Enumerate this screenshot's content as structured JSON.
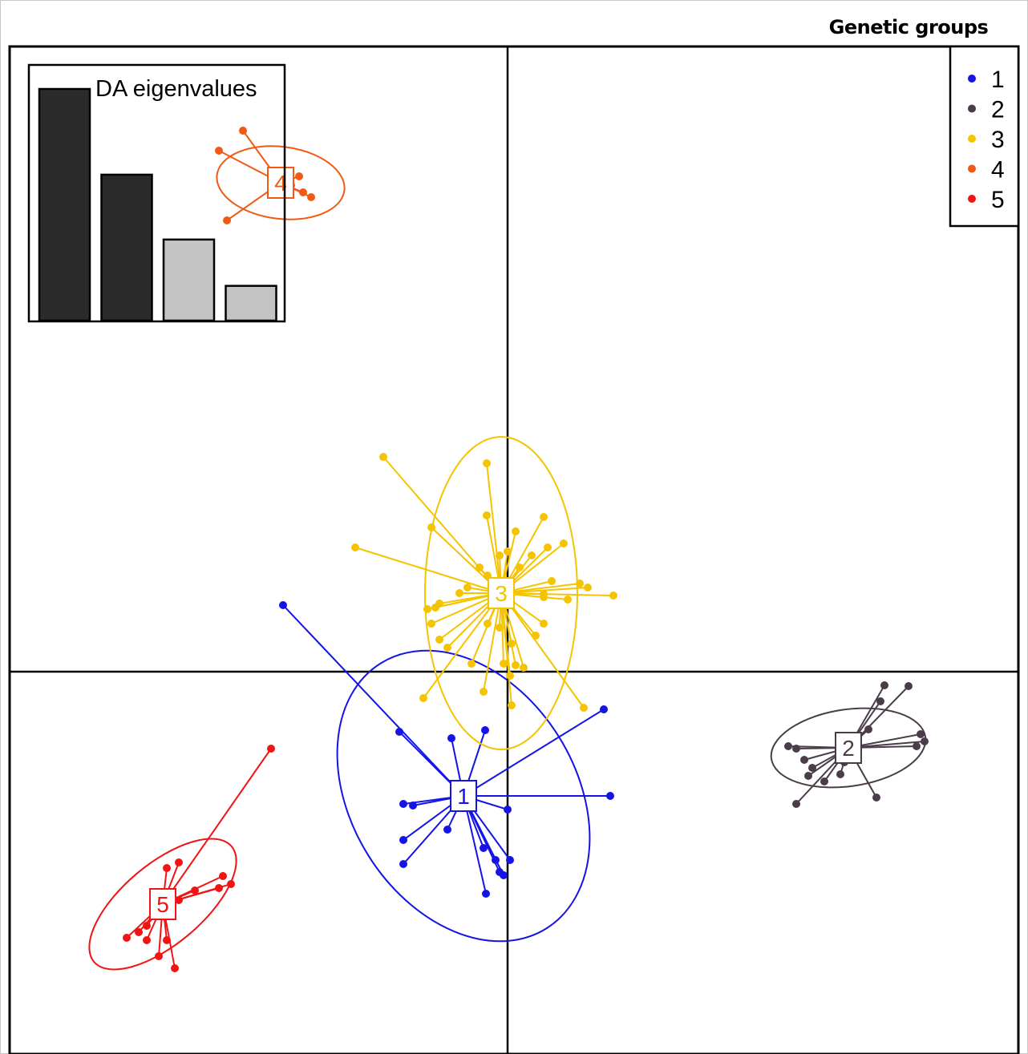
{
  "legend": {
    "title": "Genetic groups",
    "items": [
      {
        "label": "1",
        "color": "#1414e6"
      },
      {
        "label": "2",
        "color": "#4a3c48"
      },
      {
        "label": "3",
        "color": "#f5c400"
      },
      {
        "label": "4",
        "color": "#f05a14"
      },
      {
        "label": "5",
        "color": "#f01414"
      }
    ]
  },
  "inset": {
    "title": "DA eigenvalues",
    "bars": [
      {
        "value": 1.0,
        "retained": true
      },
      {
        "value": 0.63,
        "retained": true
      },
      {
        "value": 0.35,
        "retained": false
      },
      {
        "value": 0.15,
        "retained": false
      }
    ],
    "retained_color": "#2b2b2b",
    "other_color": "#c4c4c4"
  },
  "chart_data": {
    "type": "scatter",
    "xlabel": "",
    "ylabel": "",
    "axis_lines_at": [
      0,
      0
    ],
    "xlim": [
      -6.2,
      6.3
    ],
    "ylim": [
      -4.7,
      7.6
    ],
    "series": [
      {
        "name": "1",
        "centroid": [
          -0.55,
          -1.55
        ],
        "ellipse": {
          "rx": 1.4,
          "ry": 1.95,
          "angle": -32
        },
        "points": [
          [
            -2.8,
            0.83
          ],
          [
            -1.35,
            -0.75
          ],
          [
            -0.7,
            -0.83
          ],
          [
            -0.28,
            -0.73
          ],
          [
            1.2,
            -0.47
          ],
          [
            -1.3,
            -1.65
          ],
          [
            -1.18,
            -1.67
          ],
          [
            0,
            -1.72
          ],
          [
            1.28,
            -1.55
          ],
          [
            -1.3,
            -2.1
          ],
          [
            -0.75,
            -1.97
          ],
          [
            -1.3,
            -2.4
          ],
          [
            -0.3,
            -2.2
          ],
          [
            -0.15,
            -2.35
          ],
          [
            -0.1,
            -2.5
          ],
          [
            -0.05,
            -2.54
          ],
          [
            0.03,
            -2.35
          ],
          [
            -0.27,
            -2.77
          ]
        ]
      },
      {
        "name": "2",
        "centroid": [
          4.25,
          -0.95
        ],
        "ellipse": {
          "rx": 0.97,
          "ry": 0.48,
          "angle": -8
        },
        "points": [
          [
            3.5,
            -0.93
          ],
          [
            3.6,
            -0.96
          ],
          [
            4.7,
            -0.17
          ],
          [
            5,
            -0.18
          ],
          [
            4.65,
            -0.37
          ],
          [
            4.5,
            -0.72
          ],
          [
            5.15,
            -0.78
          ],
          [
            5.2,
            -0.87
          ],
          [
            5.1,
            -0.93
          ],
          [
            4.2,
            -1.13
          ],
          [
            3.7,
            -1.1
          ],
          [
            3.8,
            -1.2
          ],
          [
            3.75,
            -1.3
          ],
          [
            3.95,
            -1.37
          ],
          [
            4.15,
            -1.28
          ],
          [
            3.6,
            -1.65
          ],
          [
            4.6,
            -1.57
          ]
        ]
      },
      {
        "name": "3",
        "centroid": [
          -0.08,
          0.98
        ],
        "ellipse": {
          "rx": 0.95,
          "ry": 1.95,
          "angle": 0
        },
        "points": [
          [
            -1.55,
            2.68
          ],
          [
            -0.26,
            2.6
          ],
          [
            0.45,
            1.93
          ],
          [
            -0.95,
            1.8
          ],
          [
            -0.26,
            1.95
          ],
          [
            0.1,
            1.75
          ],
          [
            0.7,
            1.6
          ],
          [
            -1.9,
            1.55
          ],
          [
            -0.1,
            1.45
          ],
          [
            0,
            1.5
          ],
          [
            0.5,
            1.55
          ],
          [
            0.3,
            1.45
          ],
          [
            0.15,
            1.3
          ],
          [
            -0.25,
            1.2
          ],
          [
            -0.35,
            1.3
          ],
          [
            0.55,
            1.13
          ],
          [
            0.9,
            1.1
          ],
          [
            1,
            1.05
          ],
          [
            -0.5,
            1.05
          ],
          [
            -0.6,
            0.98
          ],
          [
            0.45,
            0.97
          ],
          [
            0.75,
            0.9
          ],
          [
            1.32,
            0.95
          ],
          [
            -0.85,
            0.85
          ],
          [
            0.45,
            0.93
          ],
          [
            -0.9,
            0.8
          ],
          [
            -1,
            0.78
          ],
          [
            -0.25,
            0.6
          ],
          [
            -0.1,
            0.55
          ],
          [
            0.45,
            0.6
          ],
          [
            -0.95,
            0.6
          ],
          [
            0.05,
            0.35
          ],
          [
            0.35,
            0.45
          ],
          [
            -0.75,
            0.3
          ],
          [
            -0.85,
            0.4
          ],
          [
            0.1,
            0.08
          ],
          [
            0.2,
            0.05
          ],
          [
            -0.45,
            0.1
          ],
          [
            -0.05,
            0.1
          ],
          [
            0.03,
            -0.05
          ],
          [
            -0.3,
            -0.25
          ],
          [
            -1.05,
            -0.33
          ],
          [
            0.05,
            -0.42
          ],
          [
            0.95,
            -0.45
          ]
        ]
      },
      {
        "name": "4",
        "centroid": [
          -2.83,
          6.1
        ],
        "ellipse": {
          "rx": 0.8,
          "ry": 0.45,
          "angle": 7
        },
        "points": [
          [
            -3.3,
            6.75
          ],
          [
            -3.6,
            6.5
          ],
          [
            -2.6,
            6.18
          ],
          [
            -2.7,
            6.07
          ],
          [
            -2.55,
            5.98
          ],
          [
            -2.45,
            5.92
          ],
          [
            -3.5,
            5.63
          ]
        ]
      },
      {
        "name": "5",
        "centroid": [
          -4.3,
          -2.9
        ],
        "ellipse": {
          "rx": 1.12,
          "ry": 0.5,
          "angle": -40
        },
        "points": [
          [
            -2.95,
            -0.96
          ],
          [
            -4.1,
            -2.38
          ],
          [
            -4.25,
            -2.45
          ],
          [
            -3.45,
            -2.65
          ],
          [
            -3.55,
            -2.55
          ],
          [
            -3.6,
            -2.7
          ],
          [
            -3.9,
            -2.73
          ],
          [
            -4.1,
            -2.85
          ],
          [
            -4.5,
            -3.17
          ],
          [
            -4.6,
            -3.25
          ],
          [
            -4.75,
            -3.32
          ],
          [
            -4.25,
            -3.35
          ],
          [
            -4.35,
            -3.55
          ],
          [
            -4.5,
            -3.35
          ],
          [
            -4.15,
            -3.7
          ]
        ]
      }
    ]
  }
}
